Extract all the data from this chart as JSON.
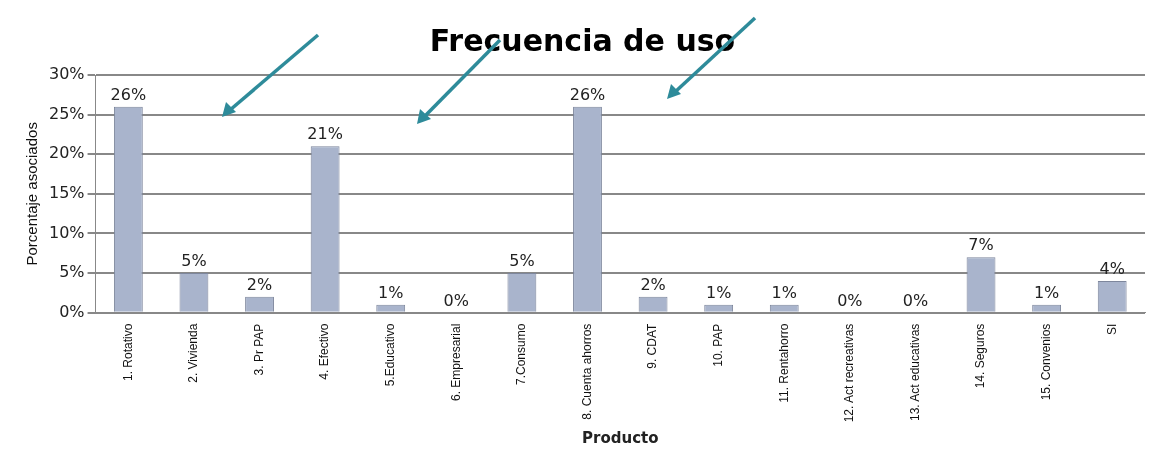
{
  "chart_data": {
    "type": "bar",
    "title": "Frecuencia de uso",
    "xlabel": "Producto",
    "ylabel": "Porcentaje asociados",
    "categories": [
      "1. Rotativo",
      "2. Vivienda",
      "3. Pr PAP",
      "4. Efectivo",
      "5.Educativo",
      "6. Empresarial",
      "7.Consumo",
      "8. Cuenta ahorros",
      "9. CDAT",
      "10. PAP",
      "11. Rentahorro",
      "12. Act recreativas",
      "13. Act educativas",
      "14. Seguros",
      "15. Convenios",
      "SI"
    ],
    "values": [
      26,
      5,
      2,
      21,
      1,
      0,
      5,
      26,
      2,
      1,
      1,
      0,
      0,
      7,
      1,
      4
    ],
    "value_labels": [
      "26%",
      "5%",
      "2%",
      "21%",
      "1%",
      "0%",
      "5%",
      "26%",
      "2%",
      "1%",
      "1%",
      "0%",
      "0%",
      "7%",
      "1%",
      "4%"
    ],
    "color": "#a9b4cc",
    "ylim": [
      0,
      30
    ],
    "yticks": [
      {
        "value": 0,
        "label": "0%"
      },
      {
        "value": 5,
        "label": "5%"
      },
      {
        "value": 10,
        "label": "10%"
      },
      {
        "value": 15,
        "label": "15%"
      },
      {
        "value": 20,
        "label": "20%"
      },
      {
        "value": 25,
        "label": "25%"
      },
      {
        "value": 30,
        "label": "30%"
      }
    ],
    "grid": "y"
  }
}
